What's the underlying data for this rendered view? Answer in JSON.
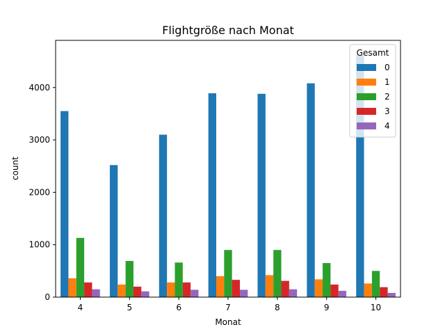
{
  "chart_data": {
    "type": "bar",
    "title": "Flightgröße nach Monat",
    "xlabel": "Monat",
    "ylabel": "count",
    "categories": [
      "4",
      "5",
      "6",
      "7",
      "8",
      "9",
      "10"
    ],
    "ylim": [
      0,
      4900
    ],
    "yticks": [
      0,
      1000,
      2000,
      3000,
      4000
    ],
    "grid": false,
    "legend": {
      "title": "Gesamt",
      "position": "top-right"
    },
    "series": [
      {
        "name": "0",
        "color": "#1f77b4",
        "values": [
          3550,
          2520,
          3100,
          3890,
          3880,
          4080,
          4620
        ]
      },
      {
        "name": "1",
        "color": "#ff7f0e",
        "values": [
          360,
          240,
          280,
          400,
          420,
          340,
          260
        ]
      },
      {
        "name": "2",
        "color": "#2ca02c",
        "values": [
          1130,
          690,
          660,
          900,
          900,
          650,
          500
        ]
      },
      {
        "name": "3",
        "color": "#d62728",
        "values": [
          280,
          200,
          280,
          330,
          310,
          240,
          190
        ]
      },
      {
        "name": "4",
        "color": "#9467bd",
        "values": [
          150,
          110,
          140,
          140,
          150,
          120,
          80
        ]
      }
    ]
  }
}
